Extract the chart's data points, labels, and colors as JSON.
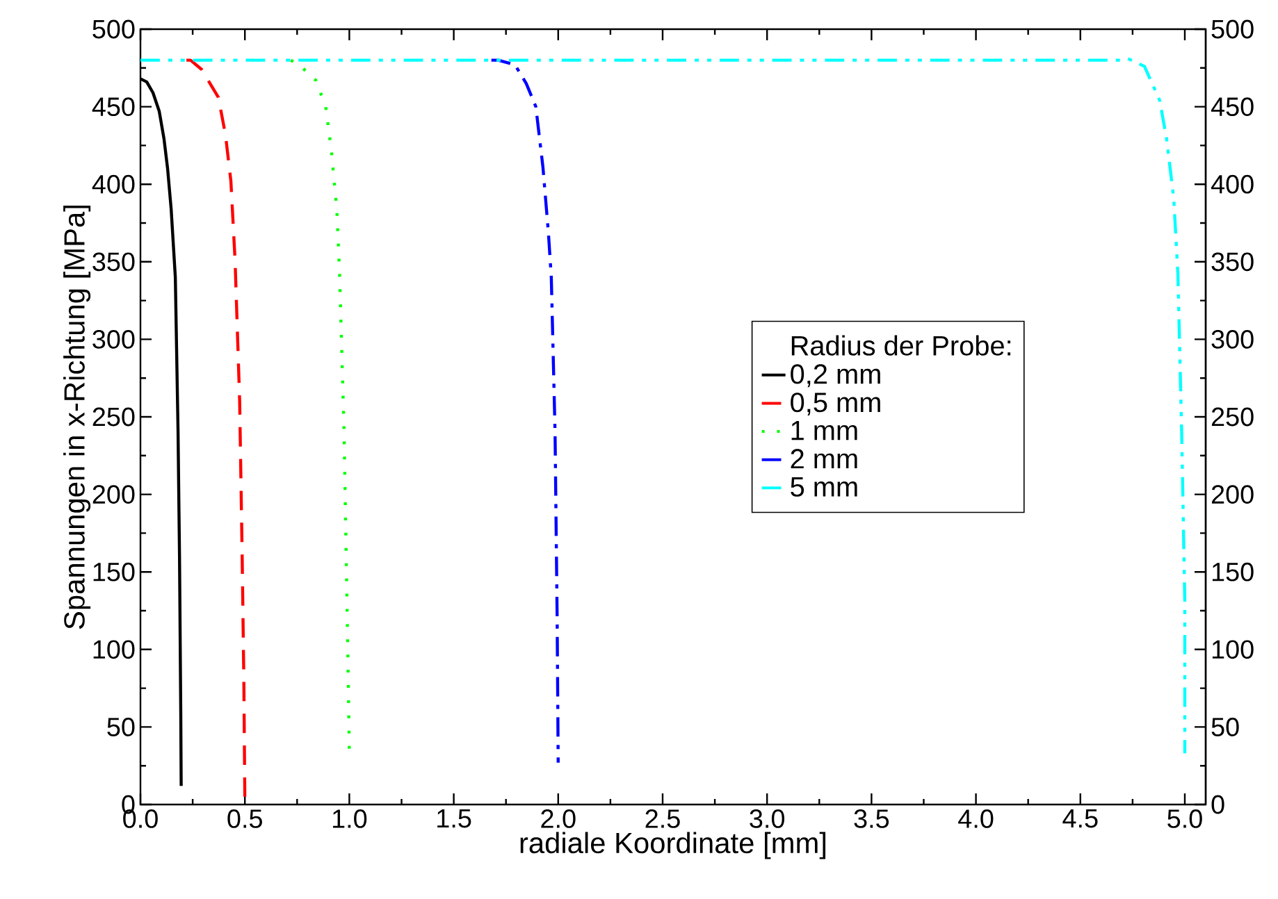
{
  "chart_data": {
    "type": "line",
    "xlabel": "radiale Koordinate [mm]",
    "ylabel": "Spannungen in x-Richtung [MPa]",
    "legend_title": "Radius der Probe:",
    "legend": "center",
    "grid": false,
    "xlim": [
      0,
      5.1
    ],
    "xticks": [
      {
        "value": 0,
        "label": "0.0"
      },
      {
        "value": 0.5,
        "label": "0.5"
      },
      {
        "value": 1,
        "label": "1.0"
      },
      {
        "value": 1.5,
        "label": "1.5"
      },
      {
        "value": 2,
        "label": "2.0"
      },
      {
        "value": 2.5,
        "label": "2.5"
      },
      {
        "value": 3,
        "label": "3.0"
      },
      {
        "value": 3.5,
        "label": "3.5"
      },
      {
        "value": 4,
        "label": "4.0"
      },
      {
        "value": 4.5,
        "label": "4.5"
      },
      {
        "value": 5,
        "label": "5.0"
      }
    ],
    "ylim": [
      0,
      500
    ],
    "yticks": [
      0,
      50,
      100,
      150,
      200,
      250,
      300,
      350,
      400,
      450,
      500
    ],
    "y2lim": [
      0,
      500
    ],
    "y2ticks": [
      0,
      50,
      100,
      150,
      200,
      250,
      300,
      350,
      400,
      450,
      500
    ],
    "series": [
      {
        "name": "0,2 mm",
        "color": "#000000",
        "line_style": "solid",
        "x": [
          0,
          0.03,
          0.06,
          0.09,
          0.113,
          0.13,
          0.147,
          0.167,
          0.18,
          0.187,
          0.193,
          0.195
        ],
        "values": [
          468,
          466,
          459,
          447,
          429,
          410,
          384,
          340,
          240,
          160,
          59,
          12
        ]
      },
      {
        "name": "0,5 mm",
        "color": "#ff0000",
        "line_style": "dashed",
        "x": [
          0.22,
          0.24,
          0.293,
          0.373,
          0.407,
          0.433,
          0.453,
          0.475,
          0.487,
          0.495,
          0.5
        ],
        "values": [
          480,
          480,
          474,
          456,
          432,
          402,
          351,
          260,
          160,
          80,
          0
        ]
      },
      {
        "name": "1 mm",
        "color": "#00ff00",
        "line_style": "dotted",
        "x": [
          0.72,
          0.76,
          0.84,
          0.887,
          0.913,
          0.94,
          0.953,
          0.975,
          0.987,
          0.995,
          1.0
        ],
        "values": [
          480,
          477,
          467,
          450,
          423,
          384,
          344,
          240,
          144,
          80,
          34
        ]
      },
      {
        "name": "2 mm",
        "color": "#0000ff",
        "line_style": "dashdot",
        "x": [
          1.68,
          1.713,
          1.793,
          1.847,
          1.893,
          1.927,
          1.953,
          1.967,
          1.985,
          1.995,
          2.0
        ],
        "values": [
          480,
          480,
          477,
          465,
          450,
          411,
          369,
          340,
          240,
          120,
          27
        ]
      },
      {
        "name": "5 mm",
        "color": "#00ffff",
        "line_style": "dashdotdot",
        "x": [
          0,
          4.7,
          4.727,
          4.807,
          4.88,
          4.913,
          4.947,
          4.967,
          4.985,
          5.0,
          5.0
        ],
        "values": [
          480,
          480,
          481,
          476,
          454,
          429,
          391,
          342,
          240,
          131,
          33
        ]
      }
    ]
  }
}
